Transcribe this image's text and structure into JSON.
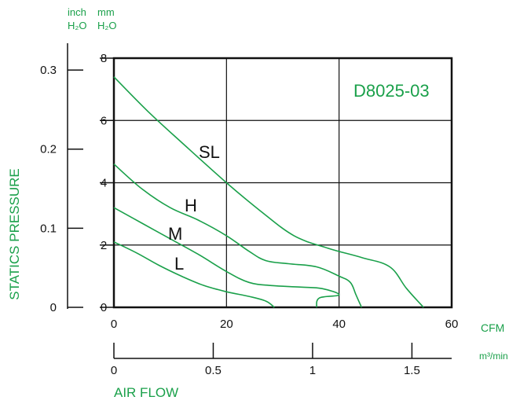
{
  "chart_data": {
    "type": "line",
    "title": "D8025-03",
    "ylabel": "STATICS PRESSURE",
    "xlabel": "AIR FLOW",
    "units": {
      "inch_top": "inch",
      "mm_top": "mm",
      "h2o_inch": "H₂O",
      "h2o_mm": "H₂O",
      "cfm": "CFM",
      "m3min": "m³/min"
    },
    "x_cfm": {
      "range": [
        0,
        60
      ],
      "ticks": [
        "0",
        "20",
        "40",
        "60"
      ]
    },
    "x_m3min": {
      "range": [
        0,
        1.7
      ],
      "ticks": [
        "0",
        "0.5",
        "1",
        "1.5"
      ]
    },
    "y_mm": {
      "range": [
        0,
        8
      ],
      "ticks": [
        "0",
        "2",
        "4",
        "6",
        "8"
      ]
    },
    "y_inch": {
      "range": [
        0,
        0.315
      ],
      "ticks": [
        "0",
        "0.1",
        "0.2",
        "0.3"
      ]
    },
    "grid": true,
    "series": [
      {
        "name": "SL",
        "x": [
          0,
          6,
          12,
          20,
          26,
          32,
          38,
          44,
          49,
          52,
          55
        ],
        "y": [
          7.4,
          6.3,
          5.3,
          4.0,
          3.1,
          2.3,
          1.9,
          1.6,
          1.3,
          0.6,
          0
        ]
      },
      {
        "name": "H",
        "x": [
          0,
          5,
          10,
          15,
          20,
          24,
          27,
          31,
          36,
          40,
          42,
          43,
          44
        ],
        "y": [
          4.6,
          3.8,
          3.2,
          2.8,
          2.3,
          1.8,
          1.5,
          1.4,
          1.3,
          1.0,
          0.8,
          0.4,
          0
        ]
      },
      {
        "name": "M",
        "x": [
          0,
          5,
          10,
          15,
          20,
          24,
          28,
          33,
          37,
          40,
          36.5,
          36
        ],
        "y": [
          3.2,
          2.7,
          2.2,
          1.7,
          1.15,
          0.8,
          0.7,
          0.65,
          0.6,
          0.4,
          0.3,
          0
        ]
      },
      {
        "name": "L",
        "x": [
          0,
          4,
          8,
          12,
          16,
          20,
          24,
          27,
          28.5
        ],
        "y": [
          2.1,
          1.75,
          1.35,
          1.0,
          0.7,
          0.5,
          0.35,
          0.2,
          0
        ]
      }
    ]
  }
}
